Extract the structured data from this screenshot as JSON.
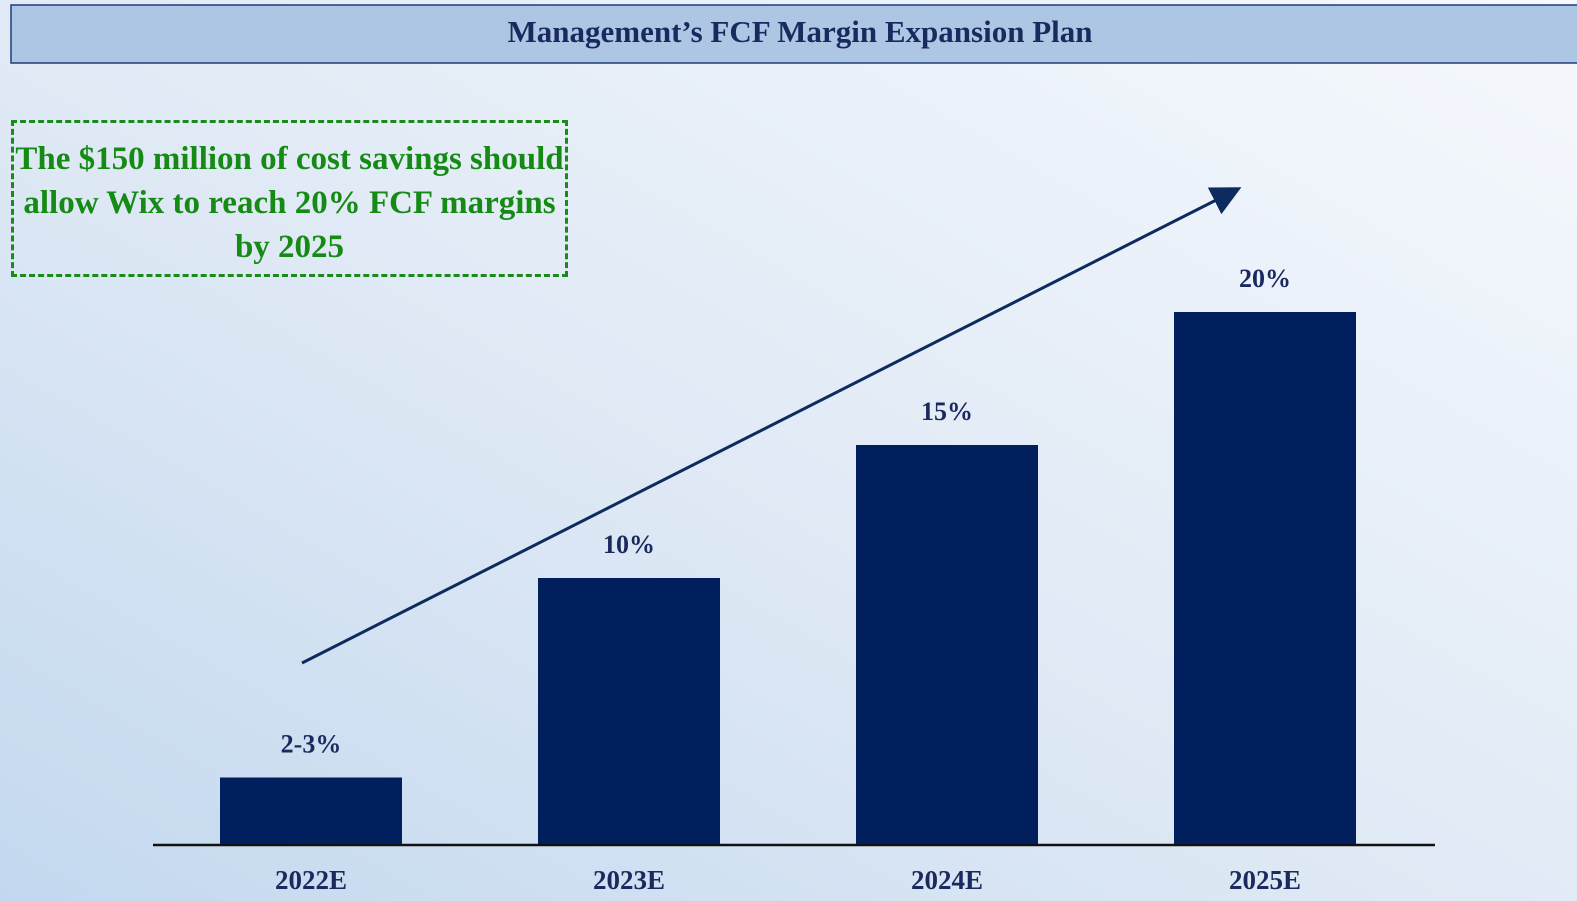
{
  "chart_data": {
    "type": "bar",
    "title": "Management’s FCF Margin Expansion Plan",
    "annotation": "The $150 million of cost savings should allow Wix to reach 20% FCF margins by 2025",
    "categories": [
      "2022E",
      "2023E",
      "2024E",
      "2025E"
    ],
    "values": [
      2.5,
      10,
      15,
      20
    ],
    "value_labels": [
      "2-3%",
      "10%",
      "15%",
      "20%"
    ],
    "color": "#001f5c"
  }
}
